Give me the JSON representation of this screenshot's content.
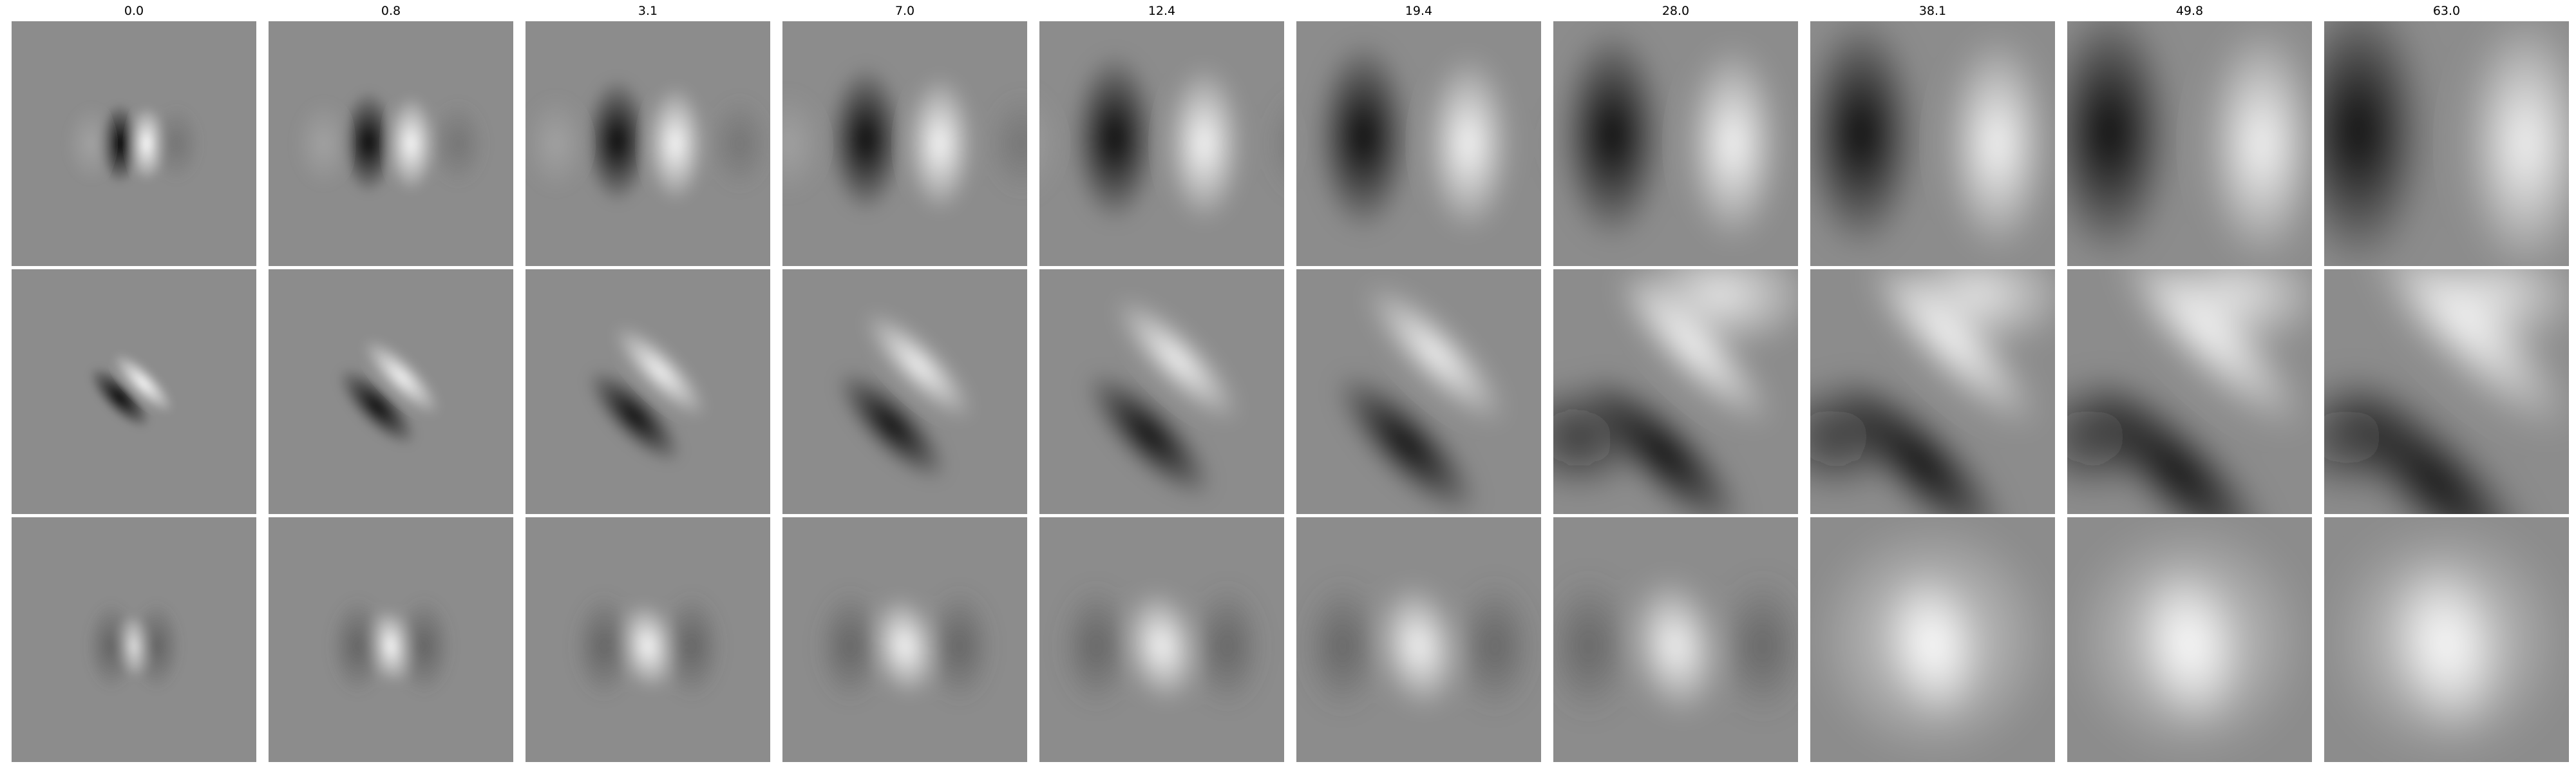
{
  "figure": {
    "column_titles": [
      "0.0",
      "0.8",
      "3.1",
      "7.0",
      "12.4",
      "19.4",
      "28.0",
      "38.1",
      "49.8",
      "63.0"
    ],
    "rows": 3,
    "description_colors": {
      "background": "#ffffff",
      "neutral_gray": "#8c8c8c"
    }
  }
}
